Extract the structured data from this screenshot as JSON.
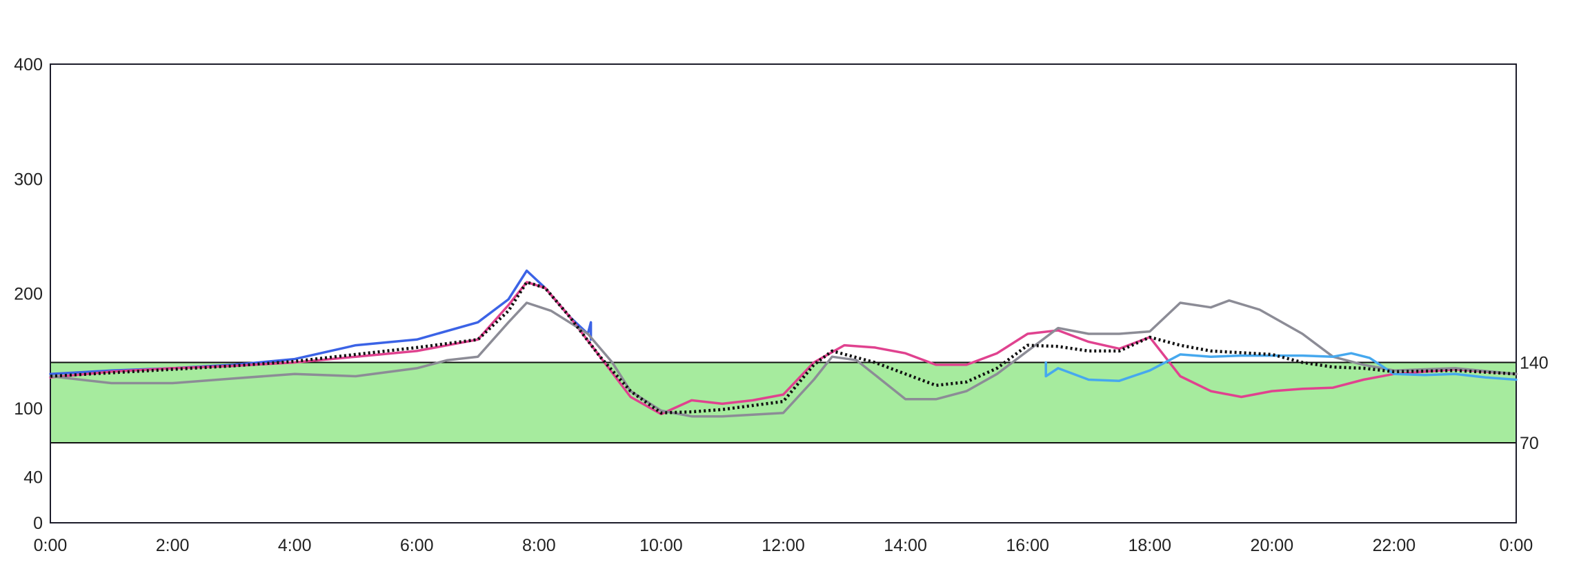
{
  "chart_data": {
    "type": "line",
    "title": "",
    "xlabel": "",
    "ylabel": "",
    "x_ticks": [
      "0:00",
      "2:00",
      "4:00",
      "6:00",
      "8:00",
      "10:00",
      "12:00",
      "14:00",
      "16:00",
      "18:00",
      "20:00",
      "22:00",
      "0:00"
    ],
    "x_range_hours": [
      0,
      24
    ],
    "y_ticks": [
      0,
      40,
      100,
      200,
      300,
      400
    ],
    "y_axis": {
      "scale": "piecewise-linear",
      "segments": [
        [
          0,
          70
        ],
        [
          70,
          400
        ]
      ]
    },
    "target_range": {
      "low": 70,
      "high": 140,
      "low_label": "70",
      "high_label": "140",
      "color": "#a6eb9e"
    },
    "grid": false,
    "legend": "none",
    "series": [
      {
        "color": "#3b63e6",
        "style": "solid",
        "points": [
          [
            0,
            130
          ],
          [
            1,
            133
          ],
          [
            2,
            135
          ],
          [
            3,
            138
          ],
          [
            4,
            143
          ],
          [
            5,
            155
          ],
          [
            6,
            160
          ],
          [
            7,
            175
          ],
          [
            7.5,
            195
          ],
          [
            7.8,
            220
          ],
          [
            8.1,
            205
          ],
          [
            8.5,
            180
          ],
          [
            8.8,
            165
          ],
          [
            8.85,
            175
          ],
          [
            8.85,
            160
          ]
        ]
      },
      {
        "color": "#e0428f",
        "style": "solid",
        "points": [
          [
            0,
            127
          ],
          [
            1,
            132
          ],
          [
            2,
            135
          ],
          [
            3,
            137
          ],
          [
            4,
            140
          ],
          [
            5,
            145
          ],
          [
            6,
            150
          ],
          [
            7,
            160
          ],
          [
            7.5,
            190
          ],
          [
            7.8,
            210
          ],
          [
            8.1,
            205
          ],
          [
            8.5,
            180
          ],
          [
            9,
            145
          ],
          [
            9.5,
            110
          ],
          [
            10,
            95
          ],
          [
            10.5,
            107
          ],
          [
            11,
            104
          ],
          [
            11.5,
            107
          ],
          [
            12,
            112
          ],
          [
            12.5,
            140
          ],
          [
            13,
            155
          ],
          [
            13.5,
            153
          ],
          [
            14,
            148
          ],
          [
            14.5,
            138
          ],
          [
            15,
            138
          ],
          [
            15.5,
            148
          ],
          [
            16,
            165
          ],
          [
            16.5,
            168
          ],
          [
            17,
            158
          ],
          [
            17.5,
            152
          ],
          [
            18,
            162
          ],
          [
            18.5,
            128
          ],
          [
            19,
            115
          ],
          [
            19.5,
            110
          ],
          [
            20,
            115
          ],
          [
            20.5,
            117
          ],
          [
            21,
            118
          ],
          [
            21.5,
            125
          ],
          [
            22,
            130
          ],
          [
            22.5,
            132
          ],
          [
            23,
            134
          ],
          [
            24,
            130
          ]
        ]
      },
      {
        "color": "#8c8c96",
        "style": "solid",
        "points": [
          [
            0,
            128
          ],
          [
            0.5,
            125
          ],
          [
            1,
            122
          ],
          [
            2,
            122
          ],
          [
            3,
            126
          ],
          [
            4,
            130
          ],
          [
            5,
            128
          ],
          [
            6,
            135
          ],
          [
            6.5,
            142
          ],
          [
            7,
            145
          ],
          [
            7.5,
            175
          ],
          [
            7.8,
            192
          ],
          [
            8.2,
            185
          ],
          [
            8.8,
            165
          ],
          [
            9.2,
            140
          ],
          [
            9.5,
            115
          ],
          [
            10,
            98
          ],
          [
            10.5,
            93
          ],
          [
            11,
            93
          ],
          [
            12,
            96
          ],
          [
            12.5,
            125
          ],
          [
            12.8,
            145
          ],
          [
            13.2,
            142
          ],
          [
            13.6,
            125
          ],
          [
            14,
            108
          ],
          [
            14.5,
            108
          ],
          [
            15,
            115
          ],
          [
            15.5,
            130
          ],
          [
            16,
            150
          ],
          [
            16.5,
            170
          ],
          [
            17,
            165
          ],
          [
            17.5,
            165
          ],
          [
            18,
            167
          ],
          [
            18.5,
            192
          ],
          [
            19,
            188
          ],
          [
            19.3,
            194
          ],
          [
            19.8,
            186
          ],
          [
            20.5,
            165
          ],
          [
            21,
            145
          ],
          [
            21.5,
            138
          ],
          [
            22,
            133
          ],
          [
            23,
            135
          ],
          [
            24,
            130
          ]
        ]
      },
      {
        "color": "#46a8ee",
        "style": "solid",
        "points": [
          [
            16.3,
            140
          ],
          [
            16.3,
            128
          ],
          [
            16.5,
            135
          ],
          [
            17,
            125
          ],
          [
            17.5,
            124
          ],
          [
            18,
            133
          ],
          [
            18.5,
            147
          ],
          [
            19,
            145
          ],
          [
            19.5,
            146
          ],
          [
            20,
            146
          ],
          [
            20.5,
            146
          ],
          [
            21,
            145
          ],
          [
            21.3,
            148
          ],
          [
            21.6,
            144
          ],
          [
            22,
            130
          ],
          [
            22.5,
            129
          ],
          [
            23,
            130
          ],
          [
            23.5,
            127
          ],
          [
            24,
            125
          ]
        ]
      },
      {
        "color": "#111111",
        "style": "dotted",
        "points": [
          [
            0,
            128
          ],
          [
            1,
            131
          ],
          [
            2,
            134
          ],
          [
            3,
            137
          ],
          [
            4,
            141
          ],
          [
            5,
            147
          ],
          [
            6,
            153
          ],
          [
            7,
            160
          ],
          [
            7.5,
            185
          ],
          [
            7.8,
            210
          ],
          [
            8.1,
            205
          ],
          [
            8.5,
            180
          ],
          [
            9,
            145
          ],
          [
            9.5,
            115
          ],
          [
            10,
            96
          ],
          [
            10.5,
            97
          ],
          [
            11,
            99
          ],
          [
            12,
            106
          ],
          [
            12.5,
            138
          ],
          [
            12.8,
            150
          ],
          [
            13.5,
            140
          ],
          [
            14,
            130
          ],
          [
            14.5,
            120
          ],
          [
            15,
            123
          ],
          [
            15.5,
            135
          ],
          [
            16,
            155
          ],
          [
            16.5,
            154
          ],
          [
            17,
            150
          ],
          [
            17.5,
            150
          ],
          [
            18,
            162
          ],
          [
            18.5,
            155
          ],
          [
            19,
            150
          ],
          [
            20,
            147
          ],
          [
            20.5,
            140
          ],
          [
            21,
            136
          ],
          [
            21.5,
            135
          ],
          [
            22,
            132
          ],
          [
            23,
            133
          ],
          [
            24,
            130
          ]
        ]
      }
    ]
  }
}
